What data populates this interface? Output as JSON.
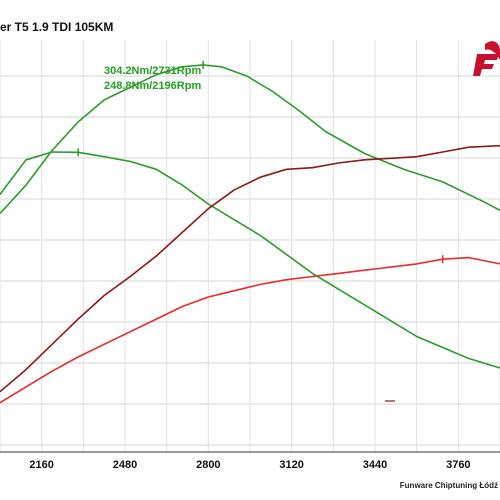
{
  "chart_data": {
    "type": "line",
    "title": "er T5 1.9 TDI 105KM",
    "xlabel": "",
    "ylabel": "",
    "xlim": [
      2000,
      3920
    ],
    "x_ticks": [
      "2160",
      "2480",
      "2800",
      "3120",
      "3440",
      "3760"
    ],
    "grid": true,
    "annotations": [
      {
        "text": "304.2Nm/2731Rpm",
        "color": "#22a022"
      },
      {
        "text": "248.8Nm/2196Rpm",
        "color": "#22a022"
      }
    ],
    "series": [
      {
        "color": "#2e9a2e",
        "x": [
          2000,
          2100,
          2200,
          2300,
          2400,
          2500,
          2600,
          2700,
          2780,
          2850,
          2950,
          3050,
          3150,
          3250,
          3400,
          3550,
          3700,
          3850,
          3920
        ],
        "y": [
          210,
          228,
          250,
          268,
          282,
          290,
          298,
          303,
          304.2,
          303,
          297,
          287,
          275,
          262,
          248,
          238,
          230,
          218,
          212
        ]
      },
      {
        "color": "#2e9a2e",
        "x": [
          2000,
          2100,
          2200,
          2300,
          2400,
          2500,
          2600,
          2700,
          2800,
          2900,
          3000,
          3100,
          3200,
          3300,
          3400,
          3500,
          3600,
          3700,
          3800,
          3920
        ],
        "y": [
          222,
          244,
          249,
          248.8,
          246,
          243,
          238,
          228,
          216,
          206,
          196,
          184,
          172,
          162,
          152,
          142,
          132,
          125,
          118,
          112
        ]
      },
      {
        "color": "#8b1a1a",
        "x": [
          2000,
          2100,
          2200,
          2300,
          2400,
          2500,
          2600,
          2700,
          2800,
          2900,
          3000,
          3100,
          3200,
          3300,
          3400,
          3500,
          3600,
          3700,
          3800,
          3920
        ],
        "y": [
          97,
          111,
          127,
          143,
          158,
          170,
          183,
          198,
          213,
          225,
          233,
          238,
          239,
          242,
          244,
          245,
          246,
          249,
          252,
          253
        ]
      },
      {
        "color": "#e82a2a",
        "x": [
          2000,
          2100,
          2200,
          2300,
          2400,
          2500,
          2600,
          2700,
          2800,
          2900,
          3000,
          3100,
          3200,
          3300,
          3400,
          3500,
          3600,
          3700,
          3800,
          3920
        ],
        "y": [
          90,
          100,
          110,
          119,
          127,
          135,
          143,
          151,
          157,
          161,
          165,
          168,
          170,
          172,
          174,
          176,
          178,
          181,
          182,
          178
        ]
      }
    ]
  },
  "footer": "Funware Chiptuning Łódź"
}
